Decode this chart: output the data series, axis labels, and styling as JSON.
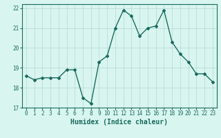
{
  "x": [
    0,
    1,
    2,
    3,
    4,
    5,
    6,
    7,
    8,
    9,
    10,
    11,
    12,
    13,
    14,
    15,
    16,
    17,
    18,
    19,
    20,
    21,
    22,
    23
  ],
  "y": [
    18.6,
    18.4,
    18.5,
    18.5,
    18.5,
    18.9,
    18.9,
    17.5,
    17.2,
    19.3,
    19.6,
    21.0,
    21.9,
    21.6,
    20.6,
    21.0,
    21.1,
    21.9,
    20.3,
    19.7,
    19.3,
    18.7,
    18.7,
    18.3
  ],
  "line_color": "#1a6b5e",
  "marker": "D",
  "marker_size": 2.0,
  "bg_color": "#d8f5f0",
  "grid_color": "#b8d8d2",
  "xlabel": "Humidex (Indice chaleur)",
  "ylabel": "",
  "title": "",
  "xlim": [
    -0.5,
    23.5
  ],
  "ylim": [
    17.0,
    22.2
  ],
  "yticks": [
    17,
    18,
    19,
    20,
    21,
    22
  ],
  "xticks": [
    0,
    1,
    2,
    3,
    4,
    5,
    6,
    7,
    8,
    9,
    10,
    11,
    12,
    13,
    14,
    15,
    16,
    17,
    18,
    19,
    20,
    21,
    22,
    23
  ],
  "tick_label_fontsize": 5.5,
  "xlabel_fontsize": 7.0,
  "line_width": 1.0,
  "spine_color": "#1a6b5e"
}
